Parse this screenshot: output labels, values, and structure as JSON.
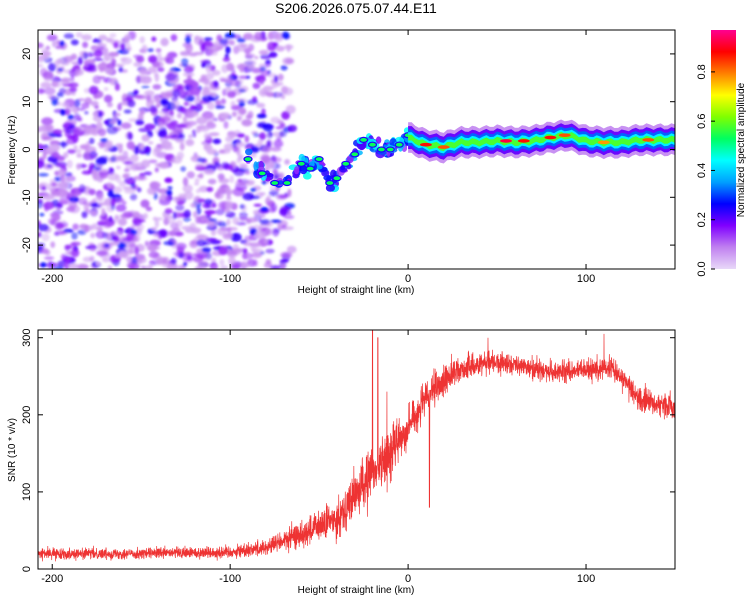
{
  "figure_title": "S206.2026.075.07.44.E11",
  "chart_data": [
    {
      "type": "heatmap",
      "name": "spectrogram",
      "title": "S206.2026.075.07.44.E11",
      "xlabel": "Height of straight line (km)",
      "ylabel": "Frequency (Hz)",
      "xlim": [
        -208,
        150
      ],
      "ylim": [
        -25,
        25
      ],
      "xticks": [
        -200,
        -100,
        0,
        100
      ],
      "yticks": [
        -20,
        -10,
        0,
        10,
        20
      ],
      "xtick_labels": [
        "-200",
        "-100",
        "0",
        "100"
      ],
      "ytick_labels": [
        "-20",
        "-10",
        "0",
        "10",
        "20"
      ],
      "colorbar": {
        "label": "Normalized spectral amplitude",
        "range": [
          0.0,
          0.97
        ],
        "ticks": [
          0.0,
          0.2,
          0.4,
          0.6,
          0.8
        ],
        "tick_labels": [
          "0.0",
          "0.2",
          "0.4",
          "0.6",
          "0.8"
        ],
        "colors": [
          "#e8d8f8",
          "#c080f0",
          "#8000ff",
          "#0000ff",
          "#00a0ff",
          "#00ffff",
          "#00ff60",
          "#80ff00",
          "#ffff00",
          "#ff8000",
          "#ff0000",
          "#ff0090"
        ]
      },
      "noise_region": {
        "x_range": [
          -208,
          -65
        ],
        "y_range": [
          -25,
          24
        ],
        "amplitude_range": [
          0.0,
          0.15
        ]
      },
      "transition_track": [
        {
          "x": -90,
          "y": -2
        },
        {
          "x": -82,
          "y": -5
        },
        {
          "x": -75,
          "y": -7
        },
        {
          "x": -68,
          "y": -7
        },
        {
          "x": -60,
          "y": -3
        },
        {
          "x": -55,
          "y": -4
        },
        {
          "x": -50,
          "y": -2
        },
        {
          "x": -44,
          "y": -7
        },
        {
          "x": -40,
          "y": -6
        },
        {
          "x": -35,
          "y": -3
        },
        {
          "x": -30,
          "y": -1
        },
        {
          "x": -25,
          "y": 2
        },
        {
          "x": -20,
          "y": 1
        },
        {
          "x": -15,
          "y": 0
        },
        {
          "x": -10,
          "y": 0
        },
        {
          "x": -5,
          "y": 1
        },
        {
          "x": 0,
          "y": 3
        }
      ],
      "carrier_track": [
        {
          "x": 0,
          "y": 2.5
        },
        {
          "x": 10,
          "y": 1
        },
        {
          "x": 20,
          "y": 0.5
        },
        {
          "x": 30,
          "y": 1.5
        },
        {
          "x": 40,
          "y": 1.5
        },
        {
          "x": 50,
          "y": 1.8
        },
        {
          "x": 60,
          "y": 1.5
        },
        {
          "x": 70,
          "y": 1.8
        },
        {
          "x": 80,
          "y": 2.5
        },
        {
          "x": 90,
          "y": 3
        },
        {
          "x": 100,
          "y": 1.8
        },
        {
          "x": 110,
          "y": 1.5
        },
        {
          "x": 120,
          "y": 1.5
        },
        {
          "x": 130,
          "y": 2
        },
        {
          "x": 140,
          "y": 2
        },
        {
          "x": 150,
          "y": 2
        }
      ],
      "carrier_peaks": [
        {
          "x": 10,
          "y": 1,
          "amp": 0.9
        },
        {
          "x": 20,
          "y": 0.5,
          "amp": 0.85
        },
        {
          "x": 55,
          "y": 1.8,
          "amp": 0.95
        },
        {
          "x": 65,
          "y": 1.8,
          "amp": 0.9
        },
        {
          "x": 80,
          "y": 2.5,
          "amp": 0.9
        },
        {
          "x": 88,
          "y": 3,
          "amp": 0.85
        },
        {
          "x": 110,
          "y": 1.5,
          "amp": 0.8
        },
        {
          "x": 135,
          "y": 2,
          "amp": 0.85
        }
      ]
    },
    {
      "type": "line",
      "name": "snr",
      "xlabel": "Height of straight line (km)",
      "ylabel": "SNR (10 * v/v)",
      "xlim": [
        -208,
        150
      ],
      "ylim": [
        0,
        310
      ],
      "xticks": [
        -200,
        -100,
        0,
        100
      ],
      "yticks": [
        0,
        100,
        200,
        300
      ],
      "xtick_labels": [
        "-200",
        "-100",
        "0",
        "100"
      ],
      "ytick_labels": [
        "0",
        "100",
        "200",
        "300"
      ],
      "color": "#ee3333",
      "envelope": [
        {
          "x": -208,
          "mean": 20,
          "spread": 10
        },
        {
          "x": -150,
          "mean": 20,
          "spread": 10
        },
        {
          "x": -100,
          "mean": 22,
          "spread": 12
        },
        {
          "x": -80,
          "mean": 28,
          "spread": 15
        },
        {
          "x": -60,
          "mean": 45,
          "spread": 25
        },
        {
          "x": -40,
          "mean": 65,
          "spread": 35
        },
        {
          "x": -25,
          "mean": 110,
          "spread": 50
        },
        {
          "x": -10,
          "mean": 150,
          "spread": 45
        },
        {
          "x": 0,
          "mean": 185,
          "spread": 35
        },
        {
          "x": 10,
          "mean": 220,
          "spread": 35
        },
        {
          "x": 25,
          "mean": 255,
          "spread": 25
        },
        {
          "x": 45,
          "mean": 270,
          "spread": 20
        },
        {
          "x": 60,
          "mean": 265,
          "spread": 18
        },
        {
          "x": 80,
          "mean": 255,
          "spread": 20
        },
        {
          "x": 100,
          "mean": 258,
          "spread": 20
        },
        {
          "x": 115,
          "mean": 262,
          "spread": 20
        },
        {
          "x": 130,
          "mean": 220,
          "spread": 22
        },
        {
          "x": 150,
          "mean": 210,
          "spread": 25
        }
      ],
      "spikes": [
        {
          "x": -20,
          "y": 310
        },
        {
          "x": -17,
          "y": 300
        },
        {
          "x": -12,
          "y": 230
        },
        {
          "x": 12,
          "y": 80
        },
        {
          "x": 45,
          "y": 300
        },
        {
          "x": 110,
          "y": 305
        }
      ]
    }
  ]
}
